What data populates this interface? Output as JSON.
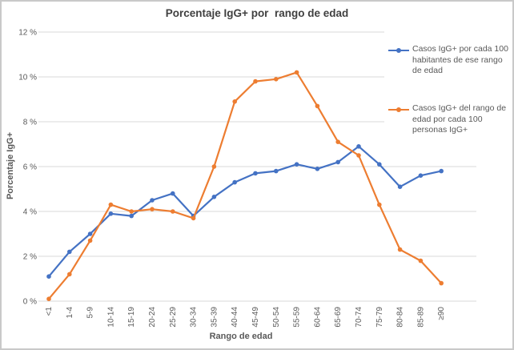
{
  "frame": {
    "background": "#ffffff",
    "border_color": "#c9c9c9"
  },
  "chart_data": {
    "type": "line",
    "title": "Porcentaje IgG+ por  rango de edad",
    "xlabel": "Rango de edad",
    "ylabel": "Porcentaje IgG+",
    "ylim": [
      0,
      12
    ],
    "ytick_step": 2,
    "yticks": [
      "0 %",
      "2 %",
      "4 %",
      "6 %",
      "8 %",
      "10 %",
      "12 %"
    ],
    "grid": true,
    "gridline_color": "#d9d9d9",
    "tick_label_color": "#595959",
    "legend_position": "right",
    "marker_shape": "circle",
    "categories": [
      "<1",
      "1-4",
      "5-9",
      "10-14",
      "15-19",
      "20-24",
      "25-29",
      "30-34",
      "35-39",
      "40-44",
      "45-49",
      "50-54",
      "55-59",
      "60-64",
      "65-69",
      "70-74",
      "75-79",
      "80-84",
      "85-89",
      "≥90"
    ],
    "series": [
      {
        "name": "Casos IgG+ por cada 100 habitantes de ese rango de edad",
        "color": "#4472C4",
        "values": [
          1.1,
          2.2,
          3.0,
          3.9,
          3.8,
          4.5,
          4.8,
          3.8,
          4.65,
          5.3,
          5.7,
          5.8,
          6.1,
          5.9,
          6.2,
          6.9,
          6.1,
          5.1,
          5.6,
          5.8
        ]
      },
      {
        "name": "Casos IgG+ del rango de edad por cada 100 personas IgG+",
        "color": "#ED7D31",
        "values": [
          0.1,
          1.2,
          2.7,
          4.3,
          4.0,
          4.1,
          4.0,
          3.7,
          6.0,
          8.9,
          9.8,
          9.9,
          10.2,
          8.7,
          7.1,
          6.5,
          4.3,
          2.3,
          1.8,
          0.8
        ]
      }
    ]
  }
}
